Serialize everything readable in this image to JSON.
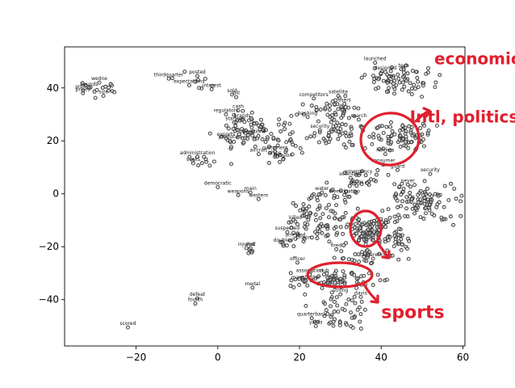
{
  "chart_data": {
    "type": "scatter",
    "title": "",
    "xlabel": "",
    "ylabel": "",
    "xlim": [
      -37.5,
      60.5
    ],
    "ylim": [
      -57.5,
      55.5
    ],
    "xticks": [
      -20,
      0,
      20,
      40,
      60
    ],
    "yticks": [
      -40,
      -20,
      0,
      20,
      40
    ],
    "grid": false,
    "labeled_points": [
      {
        "label": "launched",
        "x": 38.5,
        "y": 49.5
      },
      {
        "label": "tech",
        "x": 45.5,
        "y": 47
      },
      {
        "label": "designed",
        "x": 41,
        "y": 46
      },
      {
        "label": "posted",
        "x": -5,
        "y": 44.5
      },
      {
        "label": "thirdquarter",
        "x": -12,
        "y": 43.5
      },
      {
        "label": "wedne",
        "x": -29,
        "y": 42
      },
      {
        "label": "expectations",
        "x": -7,
        "y": 41
      },
      {
        "label": "interest",
        "x": -1.5,
        "y": 39.5
      },
      {
        "label": "profits",
        "x": -33,
        "y": 39
      },
      {
        "label": "pounds",
        "x": -31.5,
        "y": 40
      },
      {
        "label": "prices",
        "x": -33,
        "y": 38
      },
      {
        "label": "size",
        "x": -28,
        "y": 37
      },
      {
        "label": "sold",
        "x": 3.5,
        "y": 37.5
      },
      {
        "label": "bill",
        "x": 4.5,
        "y": 36.5
      },
      {
        "label": "satellite",
        "x": 29.5,
        "y": 37
      },
      {
        "label": "competitors",
        "x": 23.5,
        "y": 36
      },
      {
        "label": "users",
        "x": 31,
        "y": 34
      },
      {
        "label": "cash",
        "x": 5,
        "y": 31.5
      },
      {
        "label": "regulators",
        "x": 2,
        "y": 30
      },
      {
        "label": "banking",
        "x": 22,
        "y": 29
      },
      {
        "label": "brands",
        "x": 6,
        "y": 28
      },
      {
        "label": "startup",
        "x": 4,
        "y": 27
      },
      {
        "label": "search",
        "x": 34.5,
        "y": 28
      },
      {
        "label": "security",
        "x": 25,
        "y": 24
      },
      {
        "label": "exports",
        "x": 2,
        "y": 21
      },
      {
        "label": "produced",
        "x": 3,
        "y": 20
      },
      {
        "label": "operations",
        "x": 8.5,
        "y": 22
      },
      {
        "label": "holders",
        "x": 41,
        "y": 15
      },
      {
        "label": "customers",
        "x": 14,
        "y": 16
      },
      {
        "label": "aircraft",
        "x": 10,
        "y": 15
      },
      {
        "label": "administration",
        "x": -5,
        "y": 14
      },
      {
        "label": "seeks",
        "x": -6,
        "y": 11.5
      },
      {
        "label": "ships",
        "x": 14,
        "y": 14
      },
      {
        "label": "mission",
        "x": 16,
        "y": 13
      },
      {
        "label": "consumer",
        "x": 40.5,
        "y": 11
      },
      {
        "label": "guard",
        "x": 44,
        "y": 9
      },
      {
        "label": "security",
        "x": 52,
        "y": 7.5
      },
      {
        "label": "emergency",
        "x": 34.5,
        "y": 7
      },
      {
        "label": "scientists",
        "x": 32.5,
        "y": 6
      },
      {
        "label": "drugs",
        "x": 34,
        "y": 3
      },
      {
        "label": "democratic",
        "x": 0,
        "y": 2.5
      },
      {
        "label": "water",
        "x": 25.5,
        "y": 0.5
      },
      {
        "label": "main",
        "x": 8,
        "y": 0.5
      },
      {
        "label": "weapons",
        "x": 5,
        "y": -0.5
      },
      {
        "label": "investigation",
        "x": 31,
        "y": -0.5
      },
      {
        "label": "western",
        "x": 10,
        "y": -2
      },
      {
        "label": "never",
        "x": 46.5,
        "y": 3.5
      },
      {
        "label": "killed",
        "x": 19,
        "y": -10.5
      },
      {
        "label": "suspected",
        "x": 17,
        "y": -14.5
      },
      {
        "label": "arrested",
        "x": 19,
        "y": -17
      },
      {
        "label": "prison",
        "x": 21,
        "y": -18
      },
      {
        "label": "doubled",
        "x": 16,
        "y": -19
      },
      {
        "label": "injured",
        "x": 7,
        "y": -20.5
      },
      {
        "label": "shot",
        "x": 8,
        "y": -20.5
      },
      {
        "label": "fired",
        "x": 29,
        "y": -21
      },
      {
        "label": "officer",
        "x": 19.5,
        "y": -26
      },
      {
        "label": "conference",
        "x": 38,
        "y": -24.5
      },
      {
        "label": "association",
        "x": 22.5,
        "y": -30.5
      },
      {
        "label": "club",
        "x": 26,
        "y": -30.5
      },
      {
        "label": "manchester",
        "x": 21.5,
        "y": -33
      },
      {
        "label": "medal",
        "x": 8.5,
        "y": -35.5
      },
      {
        "label": "davis",
        "x": 35,
        "y": -39
      },
      {
        "label": "strong",
        "x": 30,
        "y": -38
      },
      {
        "label": "defeat",
        "x": -5,
        "y": -39.5
      },
      {
        "label": "fourth",
        "x": -5.5,
        "y": -41.5
      },
      {
        "label": "quarterback",
        "x": 23,
        "y": -47
      },
      {
        "label": "yards",
        "x": 24,
        "y": -50
      },
      {
        "label": "scored",
        "x": -22,
        "y": -50.5
      }
    ],
    "clusters": [
      {
        "cx": -29,
        "cy": 39.5,
        "sx": 3,
        "sy": 2,
        "n": 14
      },
      {
        "cx": -4.5,
        "cy": 42,
        "sx": 2.5,
        "sy": 1.8,
        "n": 8
      },
      {
        "cx": 44,
        "cy": 43,
        "sx": 4.5,
        "sy": 2.5,
        "n": 75
      },
      {
        "cx": 28.5,
        "cy": 32,
        "sx": 3.5,
        "sy": 2,
        "n": 40
      },
      {
        "cx": 12,
        "cy": 22,
        "sx": 5.5,
        "sy": 3,
        "n": 80
      },
      {
        "cx": 7,
        "cy": 27,
        "sx": 3,
        "sy": 2,
        "n": 15
      },
      {
        "cx": 31,
        "cy": 23,
        "sx": 4,
        "sy": 3,
        "n": 55
      },
      {
        "cx": 45,
        "cy": 21,
        "sx": 3.5,
        "sy": 3,
        "n": 75
      },
      {
        "cx": -3,
        "cy": 12,
        "sx": 2.5,
        "sy": 1.5,
        "n": 10
      },
      {
        "cx": 15,
        "cy": 14.5,
        "sx": 2,
        "sy": 1.5,
        "n": 10
      },
      {
        "cx": 36,
        "cy": 6,
        "sx": 4,
        "sy": 1.5,
        "n": 20
      },
      {
        "cx": 28,
        "cy": -2,
        "sx": 4,
        "sy": 2.5,
        "n": 30
      },
      {
        "cx": 22,
        "cy": -9,
        "sx": 3,
        "sy": 3.5,
        "n": 40
      },
      {
        "cx": 30,
        "cy": -13,
        "sx": 3.5,
        "sy": 3,
        "n": 50
      },
      {
        "cx": 38,
        "cy": -14,
        "sx": 2.5,
        "sy": 3,
        "n": 80
      },
      {
        "cx": 50,
        "cy": -3,
        "sx": 5,
        "sy": 4,
        "n": 110
      },
      {
        "cx": 43,
        "cy": -18,
        "sx": 3,
        "sy": 2.5,
        "n": 30
      },
      {
        "cx": 36,
        "cy": -24,
        "sx": 4,
        "sy": 2,
        "n": 30
      },
      {
        "cx": 30,
        "cy": -32.5,
        "sx": 5.5,
        "sy": 1.5,
        "n": 80
      },
      {
        "cx": 30,
        "cy": -44,
        "sx": 3.5,
        "sy": 3.5,
        "n": 50
      },
      {
        "cx": 17,
        "cy": -19,
        "sx": 1.5,
        "sy": 1,
        "n": 6
      },
      {
        "cx": 8,
        "cy": -22,
        "sx": 0.8,
        "sy": 0.5,
        "n": 5
      }
    ]
  },
  "annotations": [
    {
      "text": "economic",
      "x": 53,
      "y": 49,
      "size": 20
    },
    {
      "text": "Intl, politics",
      "x": 47,
      "y": 27,
      "size": 20
    },
    {
      "text": "sports",
      "x": 40,
      "y": -47,
      "size": 22
    }
  ],
  "colors": {
    "annotation": "#e0202e",
    "marker_edge": "#333333"
  }
}
